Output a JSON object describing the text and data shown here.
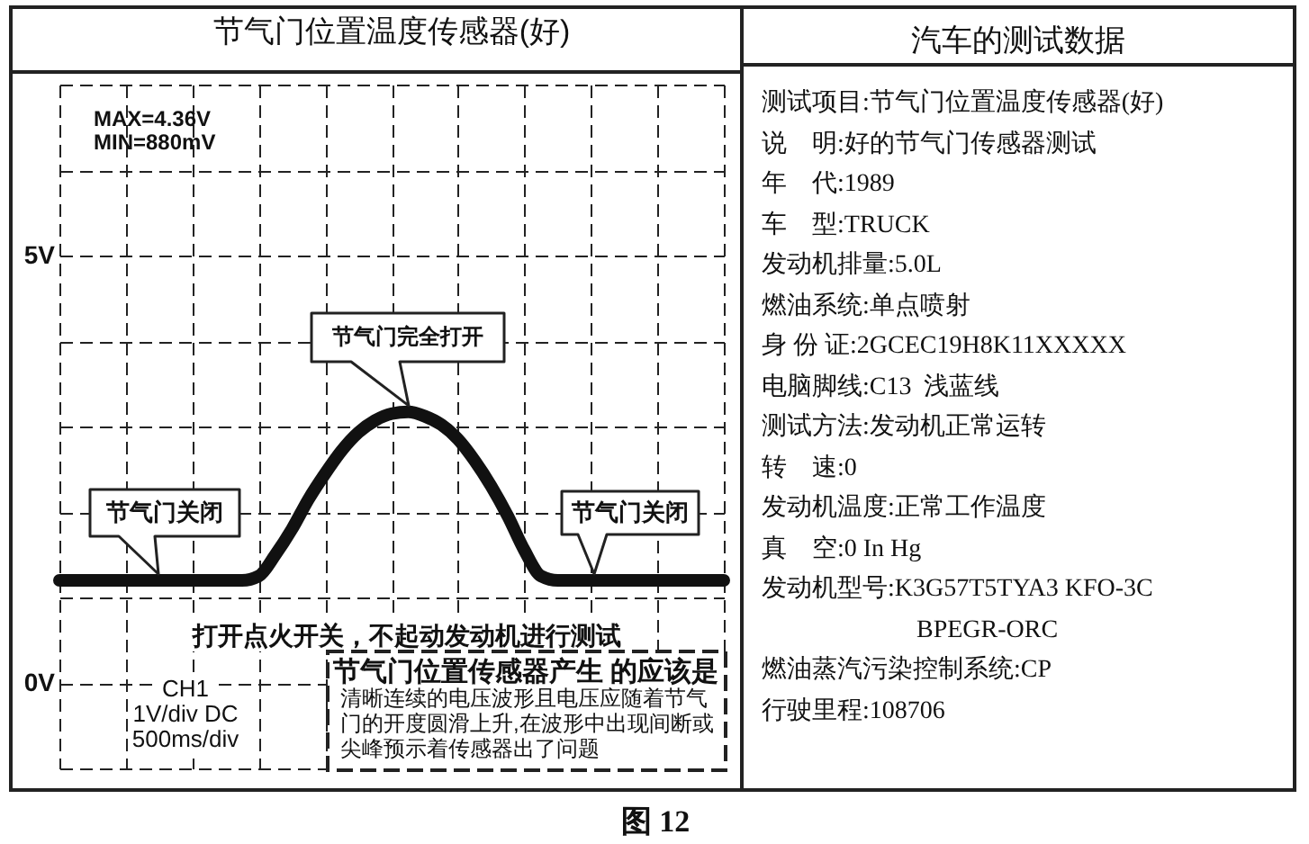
{
  "chart_data": [
    {
      "type": "line",
      "title": "节气门位置温度传感器(好)",
      "categories": [
        null,
        null,
        null,
        null,
        null,
        null,
        null,
        null,
        null,
        null,
        null,
        null,
        null,
        null,
        null,
        null,
        null,
        null,
        null,
        null,
        null,
        null,
        null,
        null,
        null,
        null,
        null,
        null,
        null,
        null,
        null,
        null,
        null,
        null,
        null,
        null,
        null,
        null,
        null,
        null,
        null
      ],
      "series": [
        {
          "color": "#111111",
          "values": [
            1.2,
            1.2,
            1.2,
            1.2,
            1.2,
            1.2,
            1.2,
            1.2,
            1.2,
            1.2,
            1.2,
            1.2,
            1.25,
            1.5,
            1.8,
            2.15,
            2.45,
            2.72,
            2.93,
            3.07,
            3.15,
            3.17,
            3.12,
            3.02,
            2.85,
            2.6,
            2.3,
            1.95,
            1.55,
            1.25,
            1.2,
            1.2,
            1.2,
            1.2,
            1.2,
            1.2,
            1.2,
            1.2,
            1.2,
            1.2,
            1.2
          ]
        }
      ],
      "ylim": [
        -1,
        7
      ],
      "yticks": [
        {
          "value": -1,
          "label": null
        },
        {
          "value": 0,
          "label": "0V"
        },
        {
          "value": 1,
          "label": null
        },
        {
          "value": 2,
          "label": null
        },
        {
          "value": 3,
          "label": null
        },
        {
          "value": 4,
          "label": null
        },
        {
          "value": 5,
          "label": "5V"
        },
        {
          "value": 6,
          "label": null
        },
        {
          "value": 7,
          "label": null
        }
      ],
      "grid": true,
      "tick_labels": "y",
      "annotations": [
        "MAX=4.36V",
        "MIN=880mV",
        {
          "text": "节气门完全打开",
          "y": 3.17
        },
        {
          "text": "节气门关闭",
          "y": 1.2
        },
        {
          "text": "节气门关闭",
          "y": 1.2
        },
        "打开点火开关，不起动发动机进行测试",
        "CH1",
        "1V/div DC",
        "500ms/div",
        "节气门位置传感器产生 的应该是",
        "清晰连续的电压波形且电压应随着节气门的开度圆滑上升,在波形中出现间断或尖峰预示着传感器出了问题",
        "图 12"
      ]
    },
    {
      "type": "other",
      "title": "汽车的测试数据",
      "annotations": [
        "测试项目:节气门位置温度传感器(好)",
        "说    明:好的节气门传感器测试",
        "年    代:1989",
        "车    型:TRUCK",
        "发动机排量:5.0L",
        "燃油系统:单点喷射",
        "身 份 证:2GCEC19H8K11XXXXX",
        "电脑脚线:C13  浅蓝线",
        "测试方法:发动机正常运转",
        "转    速:0",
        "发动机温度:正常工作温度",
        "真    空:0 In Hg",
        "发动机型号:K3G57T5TYA3 KFO-3C BPEGR-ORC",
        "燃油蒸汽污染控制系统:CP",
        "行驶里程:108706"
      ]
    }
  ]
}
